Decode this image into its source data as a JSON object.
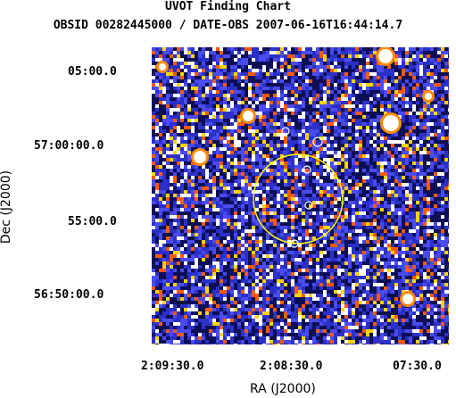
{
  "header": {
    "title": "UVOT Finding Chart",
    "subtitle": "OBSID 00282445000 / DATE-OBS 2007-06-16T16:44:14.7"
  },
  "axes": {
    "x_label": "RA (J2000)",
    "y_label": "Dec (J2000)",
    "x_ticks": [
      "2:09:30.0",
      "2:08:30.0",
      "07:30.0"
    ],
    "y_ticks": [
      "05:00.0",
      "57:00:00.0",
      "55:00.0",
      "56:50:00.0"
    ]
  },
  "colors": {
    "background": "#1a1e8c",
    "noise_palette": [
      "#0d0f55",
      "#2b30c8",
      "#4a4cf0",
      "#ffffff",
      "#ff5a00",
      "#ffd400"
    ],
    "source_region": "#ffff00",
    "source_markers": "#ffffff"
  }
}
